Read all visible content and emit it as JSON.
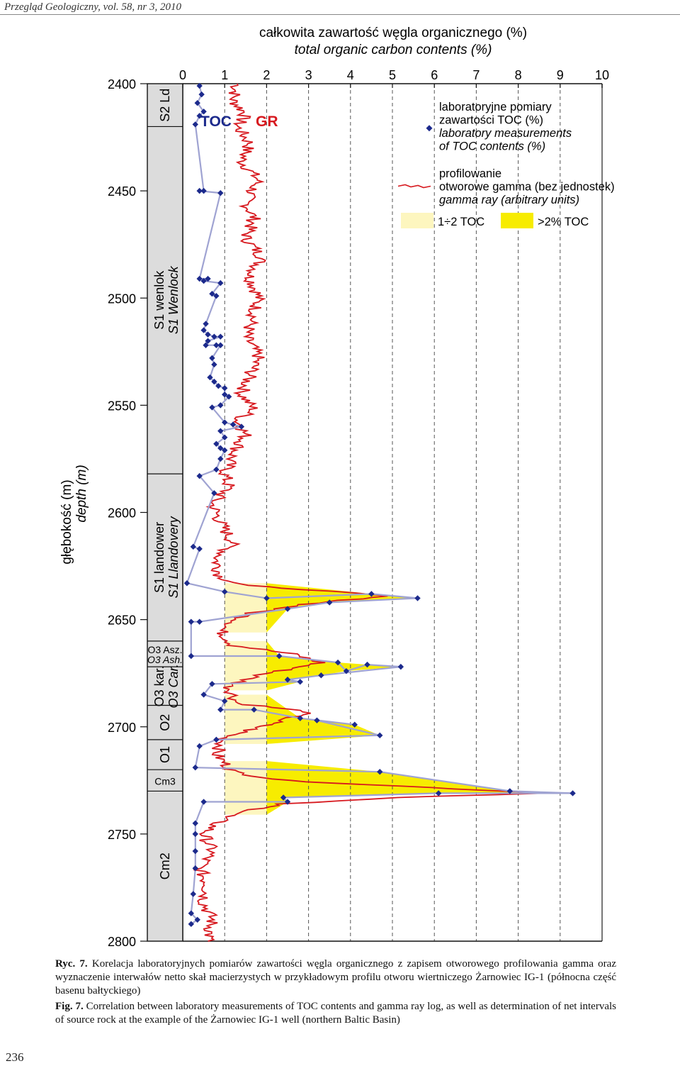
{
  "header": "Przegląd Geologiczny, vol. 58, nr 3, 2010",
  "page_number": "236",
  "caption": {
    "pl_label": "Ryc. 7.",
    "pl_text": "Korelacja laboratoryjnych pomiarów zawartości węgla organicznego z zapisem otworowego profilowania gamma oraz wyznaczenie interwałów netto skał macierzystych w przykładowym profilu otworu wiertniczego Żarnowiec IG-1 (północna część basenu bałtyckiego)",
    "en_label": "Fig. 7.",
    "en_text": "Correlation between laboratory measurements of TOC contents and gamma ray log, as well as determination of net intervals of source rock at the example of the Żarnowiec IG-1 well (northern Baltic Basin)"
  },
  "colors": {
    "toc_line": "#9fa3d2",
    "toc_marker": "#1c2a8c",
    "gr_line": "#d7191f",
    "fill_low": "#fdf6bf",
    "fill_high": "#f7ec00",
    "strat_col": "#dcdcdc",
    "grid": "#555555"
  },
  "chart_data": {
    "type": "line",
    "title": "całkowita zawartość węgla organicznego (%)",
    "subtitle": "total organic carbon contents (%)",
    "ylabel": "głębokość (m)",
    "ylabel_en": "depth (m)",
    "ylim": [
      2400,
      2800
    ],
    "xlim": [
      0,
      10
    ],
    "y_ticks": [
      "2400",
      "2450",
      "2500",
      "2550",
      "2600",
      "2650",
      "2700",
      "2750",
      "2800"
    ],
    "x_ticks": [
      "0",
      "1",
      "2",
      "3",
      "4",
      "5",
      "6",
      "7",
      "8",
      "9",
      "10"
    ],
    "curve_labels": {
      "toc": "TOC",
      "gr": "GR"
    },
    "legend": {
      "toc_pl_1": "laboratoryjne pomiary",
      "toc_pl_2": "zawartości TOC (%)",
      "toc_en_1": "laboratory measurements",
      "toc_en_2": "of TOC contents (%)",
      "gr_pl_1": "profilowanie",
      "gr_pl_2": "otworowe gamma (bez jednostek)",
      "gr_en": "gamma ray (arbitrary units)",
      "low": "1÷2 TOC",
      "high": ">2% TOC"
    },
    "stratigraphy": [
      {
        "top": 2400,
        "bottom": 2420,
        "pl": "S2 Ld",
        "en": ""
      },
      {
        "top": 2420,
        "bottom": 2582,
        "pl": "S1 wenlok",
        "en": "S1 Wenlock"
      },
      {
        "top": 2582,
        "bottom": 2660,
        "pl": "S1 landower",
        "en": "S1 Llandovery"
      },
      {
        "top": 2660,
        "bottom": 2672,
        "pl": "O3 Asz.",
        "en": "O3 Ash."
      },
      {
        "top": 2672,
        "bottom": 2690,
        "pl": "O3 kar.",
        "en": "O3 Car."
      },
      {
        "top": 2690,
        "bottom": 2706,
        "pl": "O2",
        "en": ""
      },
      {
        "top": 2706,
        "bottom": 2720,
        "pl": "O1",
        "en": ""
      },
      {
        "top": 2720,
        "bottom": 2730,
        "pl": "Cm3",
        "en": ""
      },
      {
        "top": 2730,
        "bottom": 2800,
        "pl": "Cm2",
        "en": ""
      }
    ],
    "series": [
      {
        "name": "TOC",
        "points": [
          [
            0.4,
            2401
          ],
          [
            0.45,
            2405
          ],
          [
            0.35,
            2409
          ],
          [
            0.5,
            2413
          ],
          [
            0.4,
            2415
          ],
          [
            0.3,
            2419
          ],
          [
            0.5,
            2450
          ],
          [
            0.4,
            2450
          ],
          [
            0.9,
            2451
          ],
          [
            0.4,
            2491
          ],
          [
            0.6,
            2491
          ],
          [
            0.5,
            2492
          ],
          [
            0.9,
            2493
          ],
          [
            0.7,
            2498
          ],
          [
            0.8,
            2499
          ],
          [
            0.55,
            2512
          ],
          [
            0.5,
            2515
          ],
          [
            0.6,
            2517
          ],
          [
            0.75,
            2518
          ],
          [
            0.9,
            2518
          ],
          [
            0.6,
            2520
          ],
          [
            0.55,
            2522
          ],
          [
            0.8,
            2522
          ],
          [
            0.9,
            2522
          ],
          [
            0.7,
            2528
          ],
          [
            0.75,
            2531
          ],
          [
            0.65,
            2537
          ],
          [
            0.75,
            2539
          ],
          [
            0.85,
            2541
          ],
          [
            1.0,
            2542
          ],
          [
            1.0,
            2545
          ],
          [
            1.1,
            2546
          ],
          [
            0.9,
            2550
          ],
          [
            0.7,
            2551
          ],
          [
            1.0,
            2558
          ],
          [
            1.2,
            2559
          ],
          [
            1.4,
            2560
          ],
          [
            0.9,
            2562
          ],
          [
            1.0,
            2565
          ],
          [
            0.8,
            2568
          ],
          [
            0.9,
            2570
          ],
          [
            1.0,
            2571
          ],
          [
            0.9,
            2575
          ],
          [
            0.8,
            2580
          ],
          [
            0.4,
            2583
          ],
          [
            0.75,
            2591
          ],
          [
            0.25,
            2616
          ],
          [
            0.4,
            2617
          ],
          [
            0.1,
            2633
          ],
          [
            1.0,
            2637
          ],
          [
            2.0,
            2640
          ],
          [
            4.5,
            2638
          ],
          [
            5.6,
            2640
          ],
          [
            3.5,
            2642
          ],
          [
            2.5,
            2645
          ],
          [
            0.4,
            2651
          ],
          [
            0.2,
            2651
          ],
          [
            0.2,
            2667
          ],
          [
            2.3,
            2667
          ],
          [
            3.7,
            2670
          ],
          [
            3.9,
            2674
          ],
          [
            4.4,
            2671
          ],
          [
            5.2,
            2672
          ],
          [
            3.3,
            2676
          ],
          [
            2.5,
            2678
          ],
          [
            2.8,
            2679
          ],
          [
            0.7,
            2680
          ],
          [
            0.5,
            2685
          ],
          [
            1.0,
            2688
          ],
          [
            0.9,
            2692
          ],
          [
            1.7,
            2692
          ],
          [
            2.8,
            2696
          ],
          [
            4.1,
            2699
          ],
          [
            3.2,
            2697
          ],
          [
            4.7,
            2704
          ],
          [
            0.8,
            2706
          ],
          [
            0.4,
            2709
          ],
          [
            0.3,
            2719
          ],
          [
            4.7,
            2721
          ],
          [
            7.8,
            2730
          ],
          [
            9.3,
            2731
          ],
          [
            6.1,
            2731
          ],
          [
            2.4,
            2733
          ],
          [
            2.5,
            2735
          ],
          [
            0.5,
            2735
          ],
          [
            0.3,
            2745
          ],
          [
            0.3,
            2750
          ],
          [
            0.3,
            2758
          ],
          [
            0.3,
            2766
          ],
          [
            0.25,
            2778
          ],
          [
            0.2,
            2787
          ],
          [
            0.35,
            2790
          ],
          [
            0.2,
            2792
          ]
        ]
      },
      {
        "name": "GR",
        "points": [
          [
            1.3,
            2400
          ],
          [
            1.2,
            2408
          ],
          [
            1.5,
            2414
          ],
          [
            1.3,
            2420
          ],
          [
            1.6,
            2428
          ],
          [
            1.4,
            2436
          ],
          [
            1.8,
            2445
          ],
          [
            1.5,
            2455
          ],
          [
            1.7,
            2463
          ],
          [
            1.5,
            2472
          ],
          [
            1.9,
            2481
          ],
          [
            1.6,
            2490
          ],
          [
            1.8,
            2499
          ],
          [
            1.7,
            2508
          ],
          [
            1.5,
            2518
          ],
          [
            1.8,
            2527
          ],
          [
            1.6,
            2536
          ],
          [
            1.4,
            2545
          ],
          [
            1.7,
            2552
          ],
          [
            1.3,
            2557
          ],
          [
            1.5,
            2564
          ],
          [
            1.2,
            2573
          ],
          [
            1.0,
            2582
          ],
          [
            1.1,
            2588
          ],
          [
            0.7,
            2596
          ],
          [
            0.9,
            2605
          ],
          [
            1.2,
            2614
          ],
          [
            0.8,
            2622
          ],
          [
            0.9,
            2630
          ],
          [
            1.4,
            2634
          ],
          [
            3.0,
            2636
          ],
          [
            4.8,
            2639
          ],
          [
            2.9,
            2643
          ],
          [
            1.6,
            2647
          ],
          [
            0.9,
            2655
          ],
          [
            1.2,
            2662
          ],
          [
            2.6,
            2666
          ],
          [
            3.3,
            2670
          ],
          [
            1.8,
            2676
          ],
          [
            1.1,
            2681
          ],
          [
            1.3,
            2689
          ],
          [
            3.0,
            2693
          ],
          [
            2.0,
            2699
          ],
          [
            1.0,
            2705
          ],
          [
            0.8,
            2713
          ],
          [
            1.2,
            2721
          ],
          [
            2.4,
            2725
          ],
          [
            6.6,
            2729
          ],
          [
            8.7,
            2731
          ],
          [
            5.1,
            2733
          ],
          [
            2.3,
            2736
          ],
          [
            1.0,
            2742
          ],
          [
            0.5,
            2750
          ],
          [
            0.7,
            2758
          ],
          [
            0.4,
            2766
          ],
          [
            0.6,
            2774
          ],
          [
            0.5,
            2782
          ],
          [
            0.7,
            2790
          ],
          [
            0.6,
            2800
          ]
        ]
      }
    ],
    "net_intervals": [
      {
        "top": 2633,
        "bottom": 2656
      },
      {
        "top": 2660,
        "bottom": 2683
      },
      {
        "top": 2685,
        "bottom": 2708
      },
      {
        "top": 2716,
        "bottom": 2741
      }
    ]
  }
}
